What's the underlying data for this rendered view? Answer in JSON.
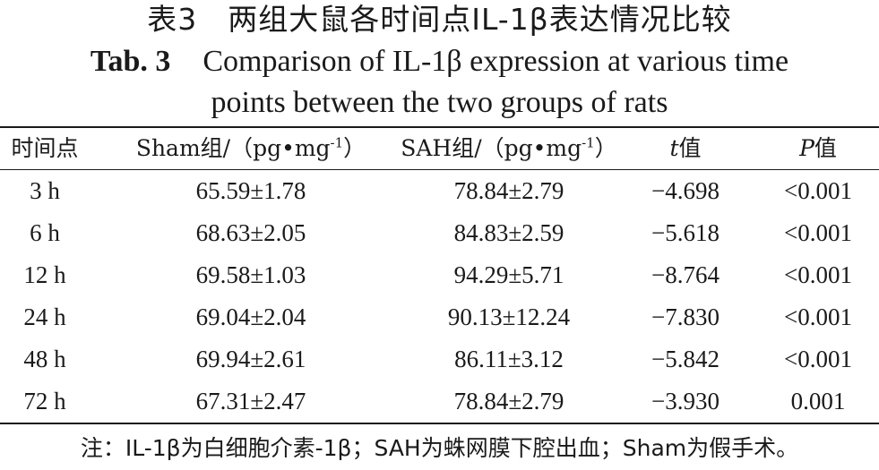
{
  "title_cn": "表3　两组大鼠各时间点IL-1β表达情况比较",
  "title_en": {
    "label": "Tab. 3",
    "line1": "Comparison of IL-1β expression at various time",
    "line2": "points between the two groups of rats"
  },
  "table": {
    "headers": {
      "time": "时间点",
      "sham_prefix": "Sham组/（pg•mg",
      "sham_sup": "-1",
      "sham_suffix": "）",
      "sah_prefix": "SAH组/（pg•mg",
      "sah_sup": "-1",
      "sah_suffix": "）",
      "t_var": "t",
      "t_suffix": "值",
      "p_var": "P",
      "p_suffix": "值"
    },
    "rows": [
      {
        "time": "3 h",
        "sham": "65.59±1.78",
        "sah": "78.84±2.79",
        "t": "−4.698",
        "p": "<0.001"
      },
      {
        "time": "6 h",
        "sham": "68.63±2.05",
        "sah": "84.83±2.59",
        "t": "−5.618",
        "p": "<0.001"
      },
      {
        "time": "12 h",
        "sham": "69.58±1.03",
        "sah": "94.29±5.71",
        "t": "−8.764",
        "p": "<0.001"
      },
      {
        "time": "24 h",
        "sham": "69.04±2.04",
        "sah": "90.13±12.24",
        "t": "−7.830",
        "p": "<0.001"
      },
      {
        "time": "48 h",
        "sham": "69.94±2.61",
        "sah": "86.11±3.12",
        "t": "−5.842",
        "p": "<0.001"
      },
      {
        "time": "72 h",
        "sham": "67.31±2.47",
        "sah": "78.84±2.79",
        "t": "−3.930",
        "p": "0.001"
      }
    ]
  },
  "note": "注：IL-1β为白细胞介素-1β；SAH为蛛网膜下腔出血；Sham为假手术。"
}
